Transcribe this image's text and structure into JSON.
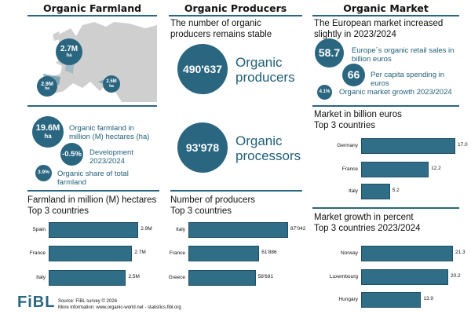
{
  "farmland": {
    "title": "Organic Farmland",
    "map_badges": [
      {
        "value": "2.7M",
        "unit": "ha"
      },
      {
        "value": "2.9M",
        "unit": "ha"
      },
      {
        "value": "2.5M",
        "unit": "ha"
      }
    ],
    "total": {
      "value": "19.6M",
      "unit": "ha",
      "label": "Organic farmland in million (M) hectares (ha)"
    },
    "development": {
      "value": "-0.5%",
      "label": "Development 2023/2024"
    },
    "share": {
      "value": "3.9%",
      "label": "Organic share of total farmland"
    }
  },
  "producers": {
    "title": "Organic Producers",
    "subtitle": "The number of organic producers remains stable",
    "producers": {
      "value": "490'637",
      "label": "Organic producers"
    },
    "processors": {
      "value": "93'978",
      "label": "Organic processors"
    }
  },
  "market": {
    "title": "Organic Market",
    "subtitle": "The European market increased slightly in 2023/2024",
    "retail": {
      "value": "58.7",
      "label": "Europe´s organic retail sales in billion euros"
    },
    "per_capita": {
      "value": "66",
      "label": "Per capita spending in euros"
    },
    "growth": {
      "value": "4.1%",
      "label": "Organic market growth 2023/2024"
    }
  },
  "chart_data": [
    {
      "type": "bar",
      "title": "Farmland in million (M) hectares\nTop 3 countries",
      "categories": [
        "Spain",
        "France",
        "Italy"
      ],
      "values": [
        2.9,
        2.7,
        2.5
      ],
      "data_labels": [
        "2.9M",
        "2.7M",
        "2.5M"
      ],
      "orientation": "horizontal"
    },
    {
      "type": "bar",
      "title": "Number of producers\nTop 3 countries",
      "categories": [
        "Italy",
        "France",
        "Greece"
      ],
      "values": [
        87042,
        61886,
        58691
      ],
      "data_labels": [
        "87'042",
        "61'886",
        "58'691"
      ],
      "orientation": "horizontal"
    },
    {
      "type": "bar",
      "title": "Market in billion euros\nTop 3 countries",
      "categories": [
        "Germany",
        "France",
        "Italy"
      ],
      "values": [
        17.0,
        12.2,
        5.2
      ],
      "data_labels": [
        "17.0",
        "12.2",
        "5.2"
      ],
      "orientation": "horizontal"
    },
    {
      "type": "bar",
      "title": "Market growth in percent\nTop 3 countries 2023/2024",
      "categories": [
        "Norway",
        "Luxembourg",
        "Hungary"
      ],
      "values": [
        21.3,
        20.2,
        13.9
      ],
      "data_labels": [
        "21.3",
        "20.2",
        "13.9"
      ],
      "orientation": "horizontal"
    }
  ],
  "footer": {
    "logo": "FiBL",
    "source": "Source: FiBL survey © 2026",
    "more": "More information: www.organic-world.net - statistics.fibl.org"
  },
  "colors": {
    "accent": "#2a6680",
    "bar": "#306d87",
    "map": "#cfcfcf"
  }
}
